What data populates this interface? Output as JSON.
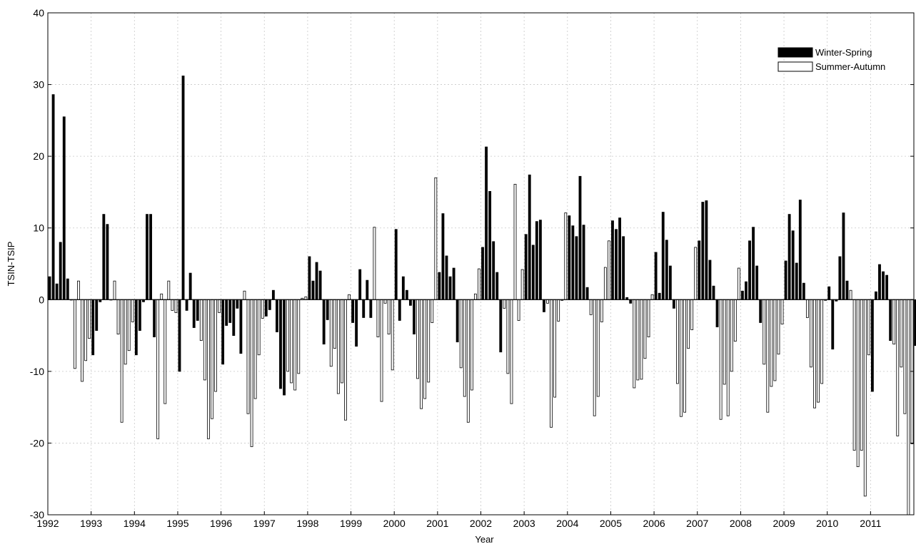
{
  "chart_data": {
    "type": "bar",
    "title": "",
    "xlabel": "Year",
    "ylabel": "TSIN-TSIP",
    "ylim": [
      -30,
      40
    ],
    "xlim": [
      1992,
      2012
    ],
    "y_ticks": [
      -30,
      -20,
      -10,
      0,
      10,
      20,
      30,
      40
    ],
    "x_tick_labels": [
      "1992",
      "1993",
      "1994",
      "1995",
      "1996",
      "1997",
      "1998",
      "1999",
      "2000",
      "2001",
      "2002",
      "2003",
      "2004",
      "2005",
      "2006",
      "2007",
      "2008",
      "2009",
      "2010",
      "2011"
    ],
    "grid": true,
    "legend_position": "top-right",
    "bar_frequency": "monthly",
    "start": "1992-01",
    "series": [
      {
        "name": "Winter-Spring",
        "color": "#000000",
        "months": [
          1,
          2,
          3,
          4,
          5,
          6
        ]
      },
      {
        "name": "Summer-Autumn",
        "color": "#ffffff",
        "months": [
          7,
          8,
          9,
          10,
          11,
          12
        ]
      }
    ],
    "values": [
      3.2,
      28.6,
      2.2,
      8.0,
      25.5,
      2.9,
      0.0,
      -9.6,
      2.6,
      -11.4,
      -8.5,
      -5.4,
      -7.7,
      -4.3,
      -0.3,
      11.9,
      10.5,
      0.0,
      2.6,
      -4.8,
      -17.1,
      -9.0,
      -7.1,
      -3.1,
      -7.7,
      -4.3,
      -0.3,
      11.9,
      11.9,
      -5.2,
      -19.4,
      0.8,
      -14.5,
      2.6,
      -1.5,
      -1.8,
      -10.0,
      31.2,
      -1.5,
      3.7,
      -3.9,
      -2.9,
      -5.7,
      -11.2,
      -19.4,
      -16.6,
      -12.8,
      -1.8,
      -9.0,
      -3.6,
      -3.2,
      -5.0,
      -1.2,
      -7.5,
      1.2,
      -15.9,
      -20.5,
      -13.8,
      -7.7,
      -2.6,
      -2.3,
      -1.4,
      1.3,
      -4.5,
      -12.4,
      -13.3,
      -10.0,
      -11.6,
      -12.6,
      -10.3,
      0.2,
      0.4,
      6.0,
      2.6,
      5.2,
      4.0,
      -6.2,
      -2.8,
      -9.3,
      -6.8,
      -13.1,
      -11.6,
      -16.8,
      0.7,
      -3.2,
      -6.5,
      4.2,
      -2.5,
      2.7,
      -2.5,
      10.1,
      -5.2,
      -14.2,
      -0.5,
      -4.8,
      -9.8,
      9.8,
      -2.9,
      3.2,
      1.3,
      -0.8,
      -4.8,
      -11.0,
      -15.2,
      -13.8,
      -11.5,
      -3.2,
      17.0,
      3.8,
      12.0,
      6.1,
      3.2,
      4.4,
      -5.9,
      -9.5,
      -13.5,
      -17.1,
      -12.6,
      0.8,
      4.3,
      7.3,
      21.3,
      15.1,
      8.1,
      3.8,
      -7.3,
      -1.2,
      -10.3,
      -14.5,
      16.1,
      -2.9,
      4.2,
      9.1,
      17.4,
      7.6,
      10.9,
      11.1,
      -1.7,
      -0.5,
      -17.8,
      -13.6,
      -3.0,
      -0.1,
      12.1,
      11.7,
      10.3,
      8.8,
      17.2,
      10.4,
      1.7,
      -2.1,
      -16.2,
      -13.5,
      -3.1,
      4.5,
      8.2,
      11.0,
      9.8,
      11.4,
      8.8,
      0.3,
      -0.5,
      -12.3,
      -11.2,
      -11.1,
      -8.2,
      -5.2,
      0.7,
      6.6,
      0.9,
      12.2,
      8.3,
      4.7,
      -1.2,
      -11.7,
      -16.3,
      -15.7,
      -6.8,
      -4.2,
      7.3,
      8.2,
      13.6,
      13.8,
      5.5,
      1.9,
      -3.8,
      -16.7,
      -11.8,
      -16.2,
      -10.0,
      -5.8,
      4.4,
      1.2,
      2.5,
      8.2,
      10.1,
      4.7,
      -3.2,
      -9.0,
      -15.7,
      -12.1,
      -11.3,
      -7.6,
      -3.4,
      5.4,
      11.9,
      9.6,
      5.1,
      13.9,
      2.3,
      -2.5,
      -9.4,
      -15.1,
      -14.3,
      -11.7,
      -0.1,
      1.8,
      -6.9,
      -0.2,
      6.0,
      12.1,
      2.6,
      1.3,
      -21.0,
      -23.3,
      -21.0,
      -27.4,
      -7.7,
      -12.8,
      1.1,
      4.9,
      3.9,
      3.4,
      -5.7,
      -6.2,
      -19.0,
      -9.4,
      -15.9,
      -30.0,
      -20.1,
      -6.4
    ]
  },
  "legend": {
    "items": [
      {
        "label": "Winter-Spring",
        "fill": "#000000"
      },
      {
        "label": "Summer-Autumn",
        "fill": "#ffffff"
      }
    ]
  }
}
